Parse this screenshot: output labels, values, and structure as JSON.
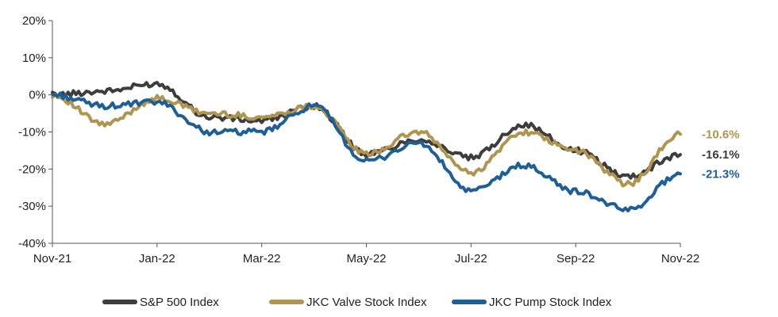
{
  "chart_data": {
    "type": "line",
    "x_ticks": [
      "Nov-21",
      "Jan-22",
      "Mar-22",
      "May-22",
      "Jul-22",
      "Sep-22",
      "Nov-22"
    ],
    "y_ticks": [
      "20%",
      "10%",
      "0%",
      "-10%",
      "-20%",
      "-30%",
      "-40%"
    ],
    "ylim": [
      -40,
      20
    ],
    "y_tick_values": [
      20,
      10,
      0,
      -10,
      -20,
      -30,
      -40
    ],
    "x": [
      "Nov-21",
      "Dec-21",
      "Jan-22",
      "Feb-22",
      "Mar-22",
      "Apr-22",
      "May-22",
      "Jun-22",
      "Jul-22",
      "Aug-22",
      "Sep-22",
      "Oct-22",
      "Nov-22"
    ],
    "series": [
      {
        "name": "S&P 500 Index",
        "color": "#3d3d3d",
        "end_label": "-16.1%",
        "values": [
          0,
          1,
          3,
          -6,
          -7,
          -3,
          -16,
          -12,
          -17,
          -8,
          -15,
          -22,
          -16.1
        ]
      },
      {
        "name": "JKC Valve Stock Index",
        "color": "#b09550",
        "end_label": "-10.6%",
        "values": [
          0,
          -8,
          -1,
          -5,
          -6,
          -3,
          -16,
          -10,
          -21,
          -10,
          -15,
          -24,
          -10.6
        ]
      },
      {
        "name": "JKC Pump Stock Index",
        "color": "#1d5f96",
        "end_label": "-21.3%",
        "values": [
          0,
          -3,
          -2,
          -10,
          -10,
          -3,
          -18,
          -13,
          -26,
          -19,
          -26,
          -31,
          -21.3
        ]
      }
    ],
    "legend_position": "bottom",
    "grid": false
  }
}
